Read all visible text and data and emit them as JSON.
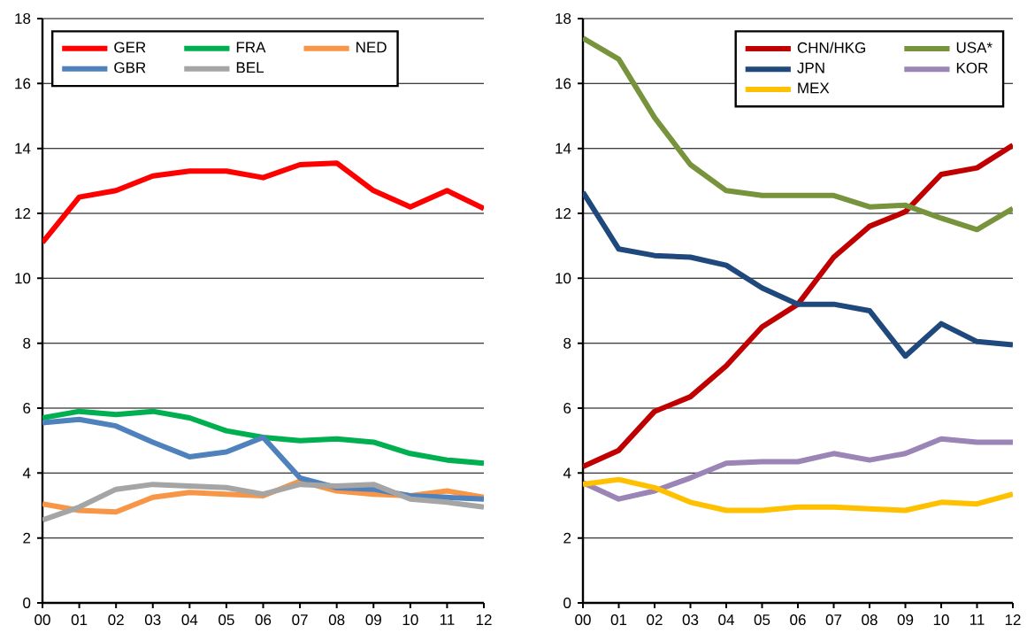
{
  "chart_data": [
    {
      "type": "line",
      "categories": [
        "00",
        "01",
        "02",
        "03",
        "04",
        "05",
        "06",
        "07",
        "08",
        "09",
        "10",
        "11",
        "12"
      ],
      "ylim": [
        0,
        18
      ],
      "yticks": [
        0,
        2,
        4,
        6,
        8,
        10,
        12,
        14,
        16,
        18
      ],
      "grid": "y",
      "legend": "top left",
      "series": [
        {
          "name": "GER",
          "color": "#ff0000",
          "values": [
            11.1,
            12.5,
            12.7,
            13.15,
            13.3,
            13.3,
            13.1,
            13.5,
            13.55,
            12.7,
            12.2,
            12.7,
            12.15
          ]
        },
        {
          "name": "FRA",
          "color": "#00b050",
          "values": [
            5.7,
            5.9,
            5.8,
            5.9,
            5.7,
            5.3,
            5.1,
            5.0,
            5.05,
            4.95,
            4.6,
            4.4,
            4.3
          ]
        },
        {
          "name": "NED",
          "color": "#f79646",
          "values": [
            3.05,
            2.85,
            2.8,
            3.25,
            3.4,
            3.35,
            3.3,
            3.75,
            3.45,
            3.35,
            3.3,
            3.45,
            3.25
          ]
        },
        {
          "name": "GBR",
          "color": "#4f81bd",
          "values": [
            5.55,
            5.65,
            5.45,
            4.95,
            4.5,
            4.65,
            5.1,
            3.85,
            3.55,
            3.5,
            3.3,
            3.25,
            3.2
          ]
        },
        {
          "name": "BEL",
          "color": "#a5a5a5",
          "values": [
            2.55,
            2.95,
            3.5,
            3.65,
            3.6,
            3.55,
            3.35,
            3.65,
            3.6,
            3.65,
            3.2,
            3.1,
            2.95
          ]
        }
      ]
    },
    {
      "type": "line",
      "categories": [
        "00",
        "01",
        "02",
        "03",
        "04",
        "05",
        "06",
        "07",
        "08",
        "09",
        "10",
        "11",
        "12"
      ],
      "ylim": [
        0,
        18
      ],
      "yticks": [
        0,
        2,
        4,
        6,
        8,
        10,
        12,
        14,
        16,
        18
      ],
      "grid": "y",
      "legend": "top right",
      "series": [
        {
          "name": "CHN/HKG",
          "color": "#c00000",
          "values": [
            4.2,
            4.7,
            5.9,
            6.35,
            7.3,
            8.5,
            9.2,
            10.65,
            11.6,
            12.05,
            13.2,
            13.4,
            14.1
          ]
        },
        {
          "name": "USA*",
          "color": "#77933c",
          "values": [
            17.4,
            16.75,
            14.95,
            13.5,
            12.7,
            12.55,
            12.55,
            12.55,
            12.2,
            12.25,
            11.85,
            11.5,
            12.15
          ]
        },
        {
          "name": "JPN",
          "color": "#1f497d",
          "values": [
            12.65,
            10.9,
            10.7,
            10.65,
            10.4,
            9.7,
            9.2,
            9.2,
            9.0,
            7.6,
            8.6,
            8.05,
            7.95
          ]
        },
        {
          "name": "KOR",
          "color": "#9b84b6",
          "values": [
            3.7,
            3.2,
            3.45,
            3.85,
            4.3,
            4.35,
            4.35,
            4.6,
            4.4,
            4.6,
            5.05,
            4.95,
            4.95
          ]
        },
        {
          "name": "MEX",
          "color": "#ffc000",
          "values": [
            3.65,
            3.8,
            3.55,
            3.1,
            2.85,
            2.85,
            2.95,
            2.95,
            2.9,
            2.85,
            3.1,
            3.05,
            3.35
          ]
        }
      ]
    }
  ]
}
